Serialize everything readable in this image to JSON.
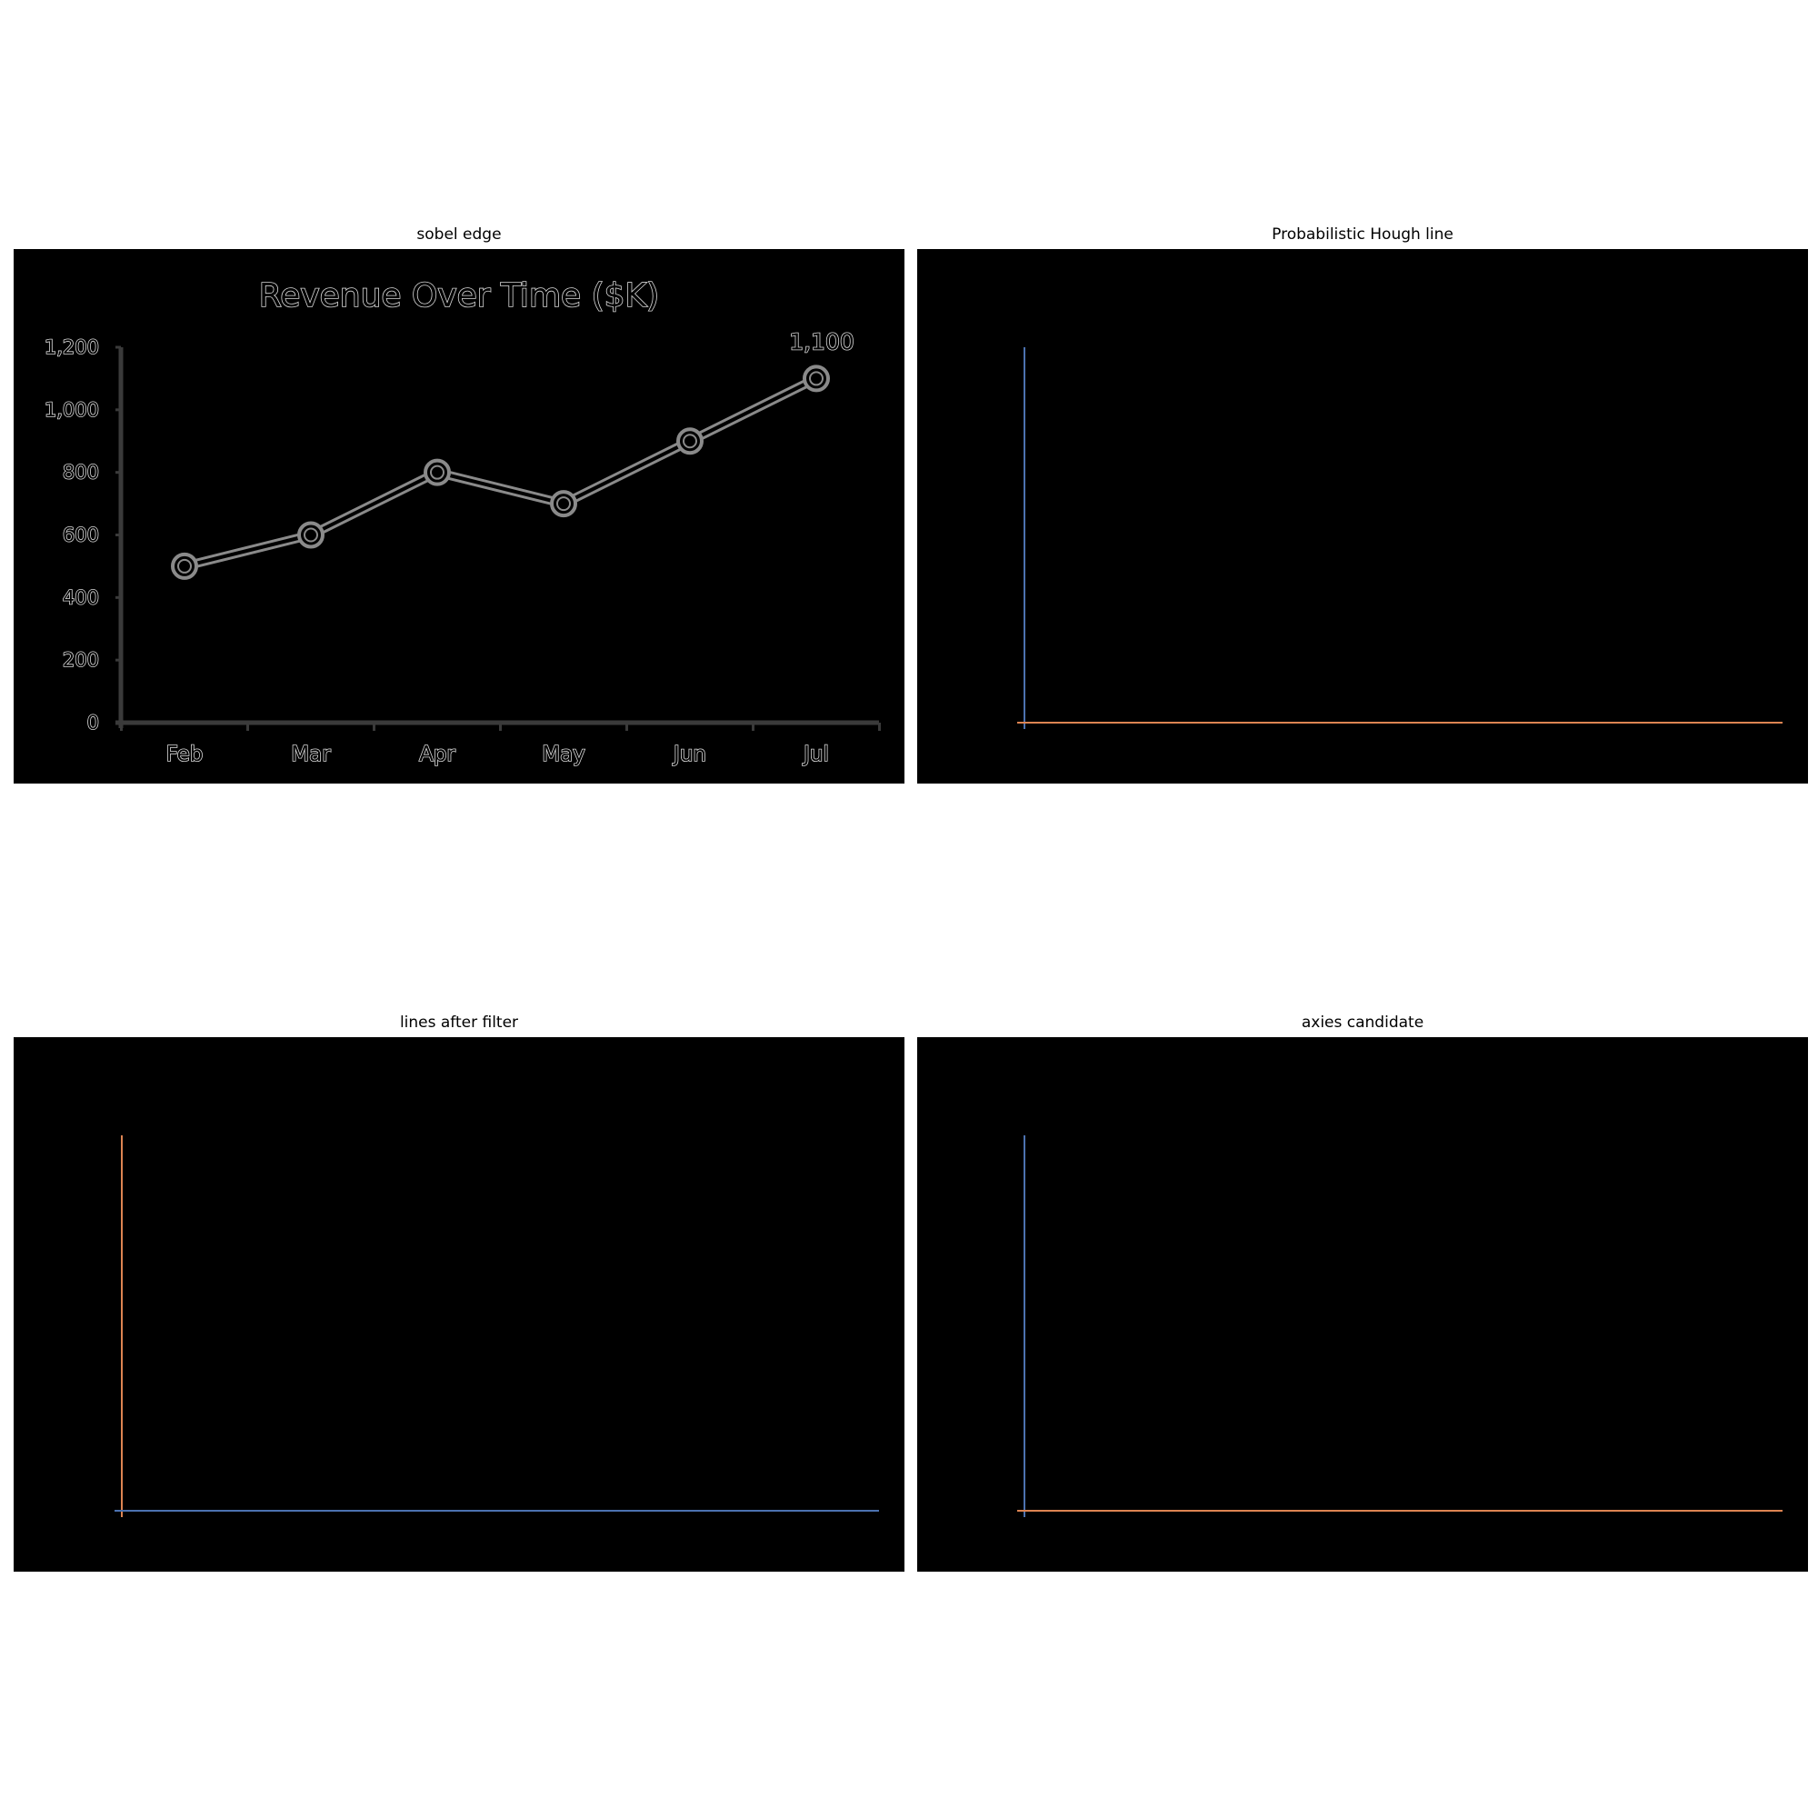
{
  "panels": [
    {
      "title": "sobel edge"
    },
    {
      "title": "Probabilistic Hough line"
    },
    {
      "title": "lines after filter"
    },
    {
      "title": "axies candidate"
    }
  ],
  "colors": {
    "background": "#000000",
    "edge": "#8a8a8a",
    "blue": "#4c72b0",
    "orange": "#dd8452"
  },
  "chart_data": {
    "type": "line",
    "title": "Revenue Over Time ($K)",
    "categories": [
      "Feb",
      "Mar",
      "Apr",
      "May",
      "Jun",
      "Jul"
    ],
    "series": [
      {
        "values": [
          500,
          600,
          800,
          700,
          900,
          1100
        ]
      }
    ],
    "y_ticks": [
      0,
      200,
      400,
      600,
      800,
      1000,
      1200
    ],
    "y_tick_labels": [
      "0",
      "200",
      "400",
      "600",
      "800",
      "1,000",
      "1,200"
    ],
    "ylim": [
      0,
      1200
    ],
    "data_labels": [
      {
        "index": 5,
        "text": "1,100"
      }
    ],
    "grid": false
  }
}
